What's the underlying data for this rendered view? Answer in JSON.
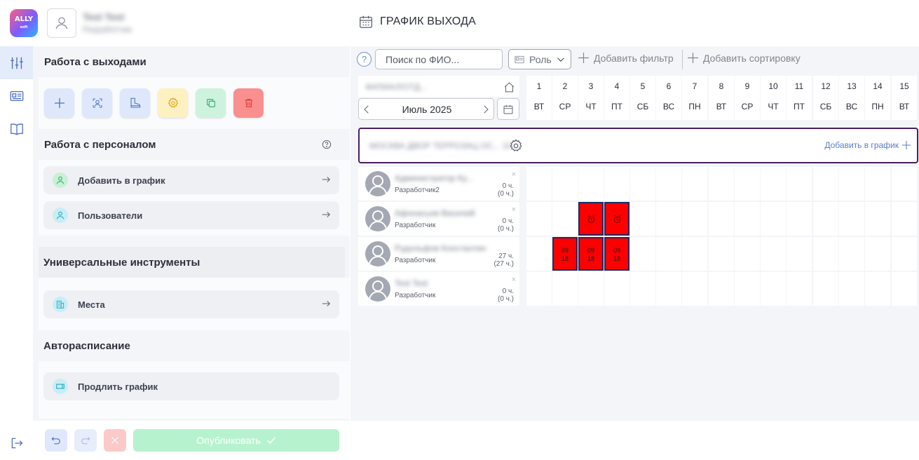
{
  "header": {
    "logo_text": "ALLY",
    "logo_sub": "soft",
    "user_name": "Test Test",
    "user_role": "Разработчик",
    "page_title": "ГРАФИК ВЫХОДА"
  },
  "panel": {
    "section_shifts": "Работа с выходами",
    "section_staff": "Работа с персоналом",
    "staff_items": [
      {
        "label": "Добавить в график"
      },
      {
        "label": "Пользователи"
      }
    ],
    "section_tools": "Универсальные инструменты",
    "tools_items": [
      {
        "label": "Места"
      }
    ],
    "section_auto": "Авторасписание",
    "auto_items": [
      {
        "label": "Продлить график"
      }
    ],
    "publish_label": "Опубликовать"
  },
  "toolbar": {
    "help": "?",
    "search_placeholder": "Поиск по ФИО...",
    "role_label": "Роль",
    "add_filter": "Добавить фильтр",
    "add_sort": "Добавить сортировку"
  },
  "schedule": {
    "info_text": "ФИЛИАЛ/ОТД...",
    "month": "Июль 2025",
    "days": [
      {
        "num": "1",
        "wd": "ВТ"
      },
      {
        "num": "2",
        "wd": "СР"
      },
      {
        "num": "3",
        "wd": "ЧТ"
      },
      {
        "num": "4",
        "wd": "ПТ"
      },
      {
        "num": "5",
        "wd": "СБ"
      },
      {
        "num": "6",
        "wd": "ВС"
      },
      {
        "num": "7",
        "wd": "ПН"
      },
      {
        "num": "8",
        "wd": "ВТ"
      },
      {
        "num": "9",
        "wd": "СР"
      },
      {
        "num": "10",
        "wd": "ЧТ"
      },
      {
        "num": "11",
        "wd": "ПТ"
      },
      {
        "num": "12",
        "wd": "СБ"
      },
      {
        "num": "13",
        "wd": "ВС"
      },
      {
        "num": "14",
        "wd": "ПН"
      },
      {
        "num": "15",
        "wd": "ВТ"
      }
    ],
    "place_name": "МОСКВА ДВОР ТЕРРОЗАЦ ОС... 10",
    "add_to_schedule": "Добавить в график",
    "employees": [
      {
        "name": "Администратор Ку...",
        "role": "Разработчик2",
        "hours": "0 ч.",
        "hours_total": "(0 ч.)",
        "close": "×"
      },
      {
        "name": "Афонасьев Василий",
        "role": "Разработчик",
        "hours": "0 ч.",
        "hours_total": "(0 ч.)",
        "close": "×"
      },
      {
        "name": "Рудольфов Константин",
        "role": "Разработчик",
        "hours": "27 ч.",
        "hours_total": "(27 ч.)",
        "close": ""
      },
      {
        "name": "Test Test",
        "role": "Разработчик",
        "hours": "0 ч.",
        "hours_total": "(0 ч.)",
        "close": "×"
      }
    ],
    "shift_start": "09",
    "shift_end": "18"
  }
}
